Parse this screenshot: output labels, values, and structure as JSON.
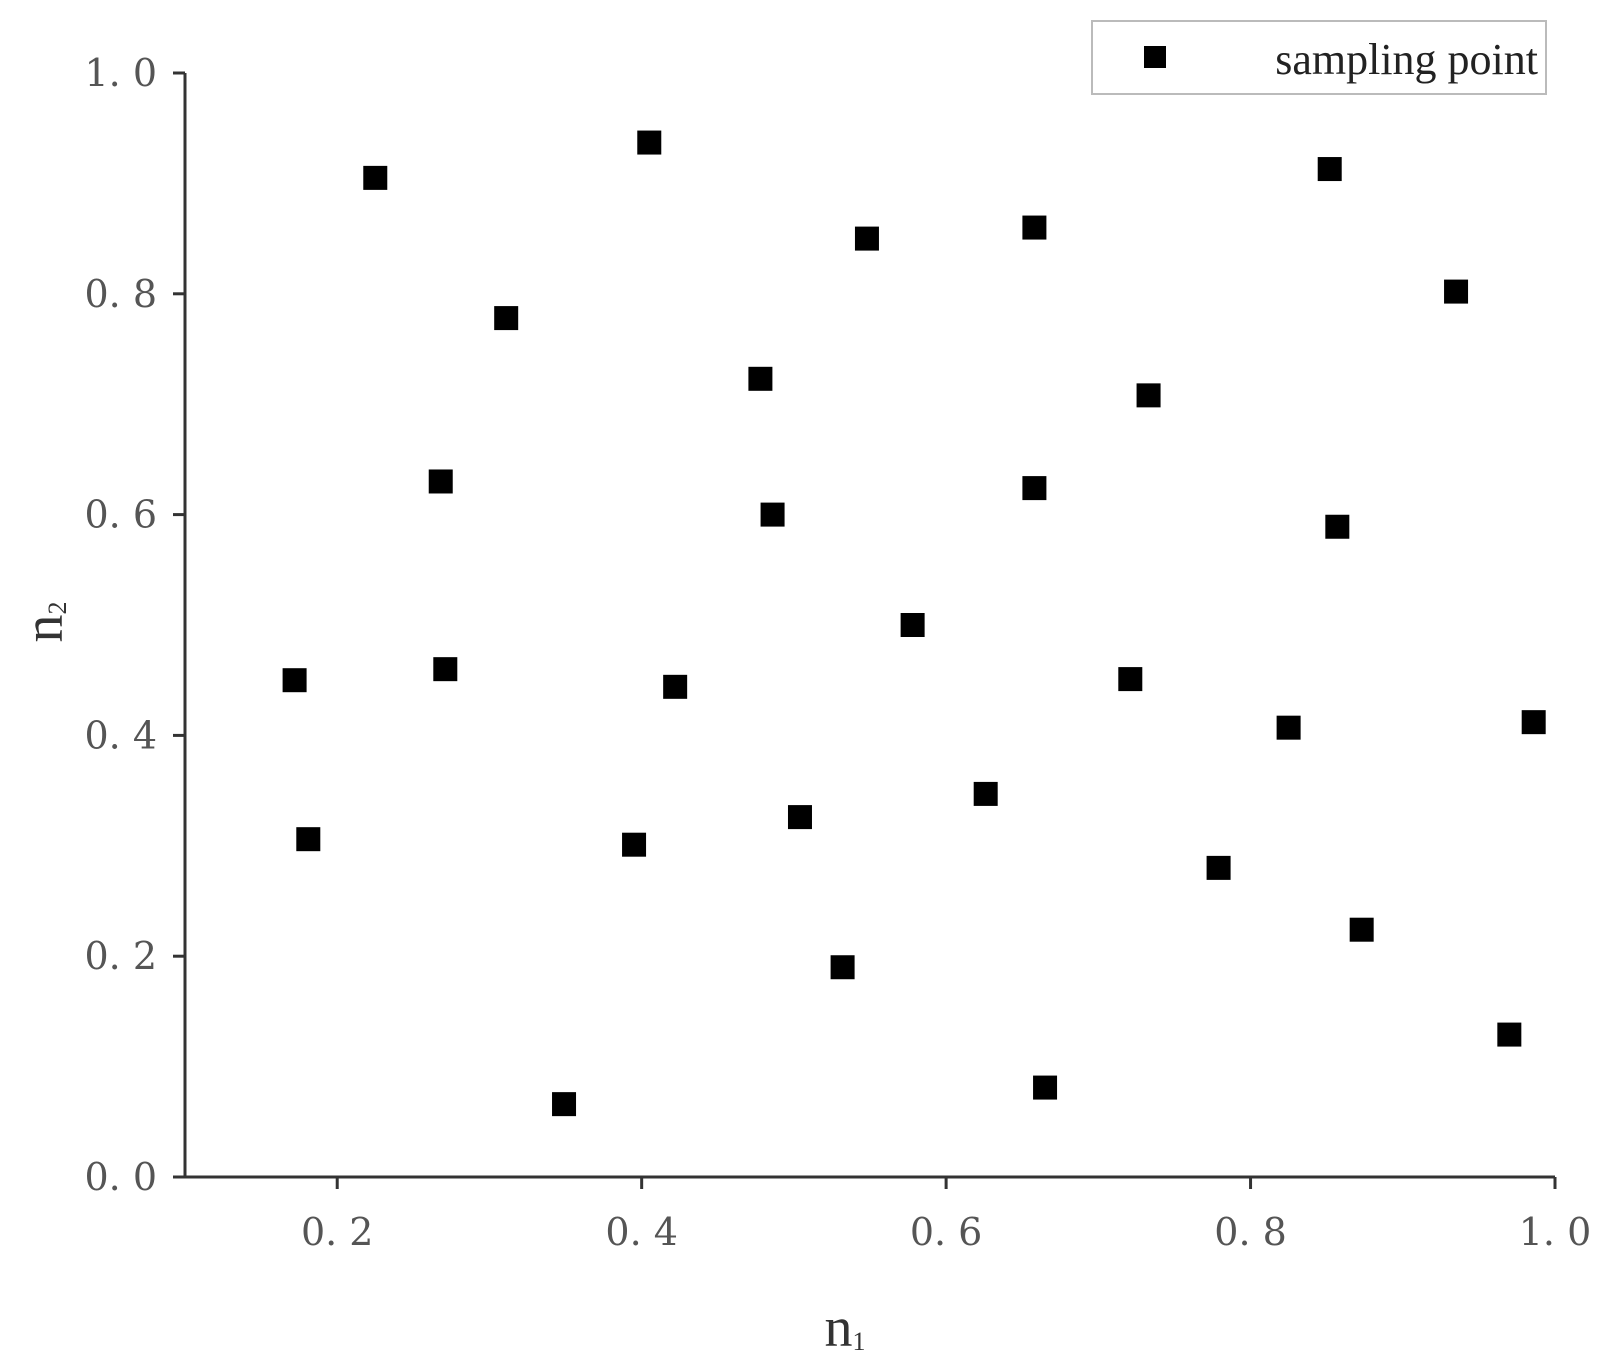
{
  "chart_data": {
    "type": "scatter",
    "series": [
      {
        "name": "sampling point",
        "marker": "square",
        "color": "#000000",
        "points": [
          {
            "x": 0.225,
            "y": 0.905
          },
          {
            "x": 0.405,
            "y": 0.937
          },
          {
            "x": 0.852,
            "y": 0.913
          },
          {
            "x": 0.548,
            "y": 0.85
          },
          {
            "x": 0.658,
            "y": 0.86
          },
          {
            "x": 0.935,
            "y": 0.802
          },
          {
            "x": 0.311,
            "y": 0.778
          },
          {
            "x": 0.478,
            "y": 0.723
          },
          {
            "x": 0.733,
            "y": 0.708
          },
          {
            "x": 0.268,
            "y": 0.63
          },
          {
            "x": 0.486,
            "y": 0.6
          },
          {
            "x": 0.658,
            "y": 0.624
          },
          {
            "x": 0.857,
            "y": 0.589
          },
          {
            "x": 0.578,
            "y": 0.5
          },
          {
            "x": 0.172,
            "y": 0.45
          },
          {
            "x": 0.271,
            "y": 0.46
          },
          {
            "x": 0.422,
            "y": 0.444
          },
          {
            "x": 0.721,
            "y": 0.451
          },
          {
            "x": 0.825,
            "y": 0.407
          },
          {
            "x": 0.986,
            "y": 0.412
          },
          {
            "x": 0.181,
            "y": 0.306
          },
          {
            "x": 0.395,
            "y": 0.301
          },
          {
            "x": 0.504,
            "y": 0.326
          },
          {
            "x": 0.626,
            "y": 0.347
          },
          {
            "x": 0.779,
            "y": 0.28
          },
          {
            "x": 0.873,
            "y": 0.224
          },
          {
            "x": 0.532,
            "y": 0.19
          },
          {
            "x": 0.349,
            "y": 0.066
          },
          {
            "x": 0.665,
            "y": 0.081
          },
          {
            "x": 0.97,
            "y": 0.129
          }
        ]
      }
    ],
    "xlabel": "n",
    "xlabel_sub": "1",
    "ylabel": "n",
    "ylabel_sub": "2",
    "xlim": [
      0.1,
      1.0
    ],
    "ylim": [
      0.0,
      1.0
    ],
    "xticks": [
      0.2,
      0.4,
      0.6,
      0.8,
      1.0
    ],
    "xtick_labels": [
      "0. 2",
      "0. 4",
      "0. 6",
      "0. 8",
      "1. 0"
    ],
    "yticks": [
      0.0,
      0.2,
      0.4,
      0.6,
      0.8,
      1.0
    ],
    "ytick_labels": [
      "0. 0",
      "0. 2",
      "0. 4",
      "0. 6",
      "0. 8",
      "1. 0"
    ],
    "grid": false,
    "legend_position": "top-right"
  }
}
